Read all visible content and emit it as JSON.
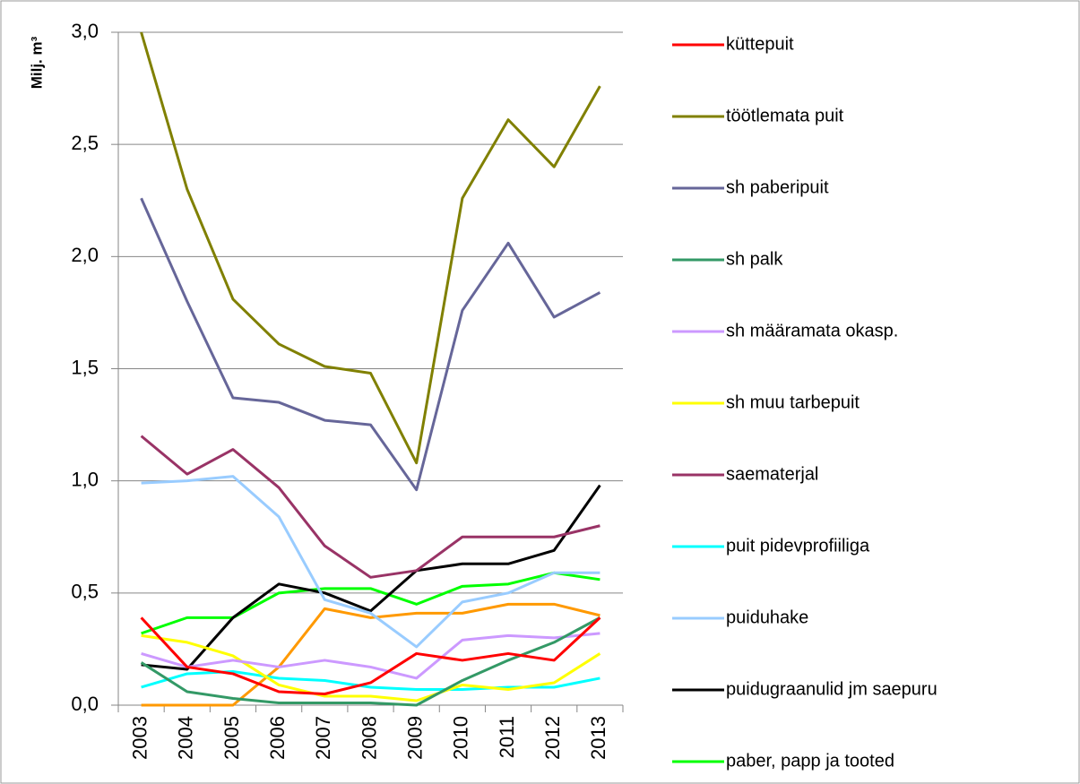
{
  "chart_data": {
    "type": "line",
    "y_label": "Milj. m³",
    "categories": [
      "2003",
      "2004",
      "2005",
      "2006",
      "2007",
      "2008",
      "2009",
      "2010",
      "2011",
      "2012",
      "2013"
    ],
    "ylim": [
      0,
      3
    ],
    "yticks": [
      {
        "value": 0,
        "label": "0,0"
      },
      {
        "value": 0.5,
        "label": "0,5"
      },
      {
        "value": 1,
        "label": "1,0"
      },
      {
        "value": 1.5,
        "label": "1,5"
      },
      {
        "value": 2,
        "label": "2,0"
      },
      {
        "value": 2.5,
        "label": "2,5"
      },
      {
        "value": 3,
        "label": "3,0"
      }
    ],
    "grid": true,
    "legend": "right",
    "series": [
      {
        "name": "küttepuit",
        "color": "#ff0000",
        "values": [
          0.39,
          0.17,
          0.14,
          0.06,
          0.05,
          0.1,
          0.23,
          0.2,
          0.23,
          0.2,
          0.39
        ]
      },
      {
        "name": "töötlemata puit",
        "color": "#808000",
        "values": [
          3.0,
          2.3,
          1.81,
          1.61,
          1.51,
          1.48,
          1.08,
          2.26,
          2.61,
          2.4,
          2.76
        ]
      },
      {
        "name": " sh paberipuit",
        "color": "#666699",
        "values": [
          2.26,
          1.8,
          1.37,
          1.35,
          1.27,
          1.25,
          0.96,
          1.76,
          2.06,
          1.73,
          1.84
        ]
      },
      {
        "name": " sh palk",
        "color": "#339966",
        "values": [
          0.19,
          0.06,
          0.03,
          0.01,
          0.01,
          0.01,
          0.0,
          0.11,
          0.2,
          0.28,
          0.39
        ]
      },
      {
        "name": " sh määramata okasp.",
        "color": "#cc99ff",
        "values": [
          0.23,
          0.17,
          0.2,
          0.17,
          0.2,
          0.17,
          0.12,
          0.29,
          0.31,
          0.3,
          0.32
        ]
      },
      {
        "name": " sh muu tarbepuit",
        "color": "#ffff00",
        "values": [
          0.31,
          0.28,
          0.22,
          0.09,
          0.04,
          0.04,
          0.02,
          0.09,
          0.07,
          0.1,
          0.23
        ]
      },
      {
        "name": "saematerjal",
        "color": "#993366",
        "values": [
          1.2,
          1.03,
          1.14,
          0.97,
          0.71,
          0.57,
          0.6,
          0.75,
          0.75,
          0.75,
          0.8
        ]
      },
      {
        "name": "puit pidevprofiiliga",
        "color": "#00ffff",
        "values": [
          0.08,
          0.14,
          0.15,
          0.12,
          0.11,
          0.08,
          0.07,
          0.07,
          0.08,
          0.08,
          0.12
        ]
      },
      {
        "name": "puiduhake",
        "color": "#99ccff",
        "values": [
          0.99,
          1.0,
          1.02,
          0.84,
          0.47,
          0.41,
          0.26,
          0.46,
          0.5,
          0.59,
          0.59
        ]
      },
      {
        "name": "puidugraanulid jm saepuru",
        "color": "#000000",
        "values": [
          0.18,
          0.16,
          0.39,
          0.54,
          0.5,
          0.42,
          0.6,
          0.63,
          0.63,
          0.69,
          0.98
        ]
      },
      {
        "name": "paber, papp ja tooted",
        "color": "#00ff00",
        "values": [
          0.32,
          0.39,
          0.39,
          0.5,
          0.52,
          0.52,
          0.45,
          0.53,
          0.54,
          0.59,
          0.56
        ]
      },
      {
        "color": "#ff9900",
        "values": [
          0.0,
          0.0,
          0.0,
          0.17,
          0.43,
          0.39,
          0.41,
          0.41,
          0.45,
          0.45,
          0.4
        ]
      }
    ]
  }
}
